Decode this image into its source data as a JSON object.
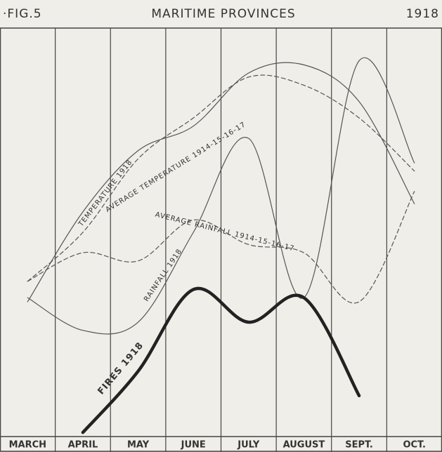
{
  "chart_data": {
    "type": "line",
    "figure": "·FIG.5",
    "title": "MARITIME PROVINCES",
    "year": "1918",
    "categories": [
      "MARCH",
      "APRIL",
      "MAY",
      "JUNE",
      "JULY",
      "AUGUST",
      "SEPT.",
      "OCT."
    ],
    "ylim": [
      0,
      100
    ],
    "series": [
      {
        "name": "TEMPERATURE 1918",
        "color": "#555",
        "style": "solid",
        "width": 1.2,
        "values": [
          33,
          55,
          70,
          76,
          89,
          91,
          82,
          57
        ]
      },
      {
        "name": "AVERAGE TEMPERATURE 1914-15-16-17",
        "color": "#555",
        "style": "dashed",
        "width": 1.2,
        "values": [
          38,
          50,
          68,
          78,
          88,
          86,
          78,
          65
        ]
      },
      {
        "name": "AVERAGE RAINFALL 1914-15-16-17",
        "color": "#555",
        "style": "dashed",
        "width": 1.2,
        "values": [
          38,
          45,
          43,
          53,
          47,
          45,
          33,
          60
        ]
      },
      {
        "name": "RAINFALL 1918",
        "color": "#555",
        "style": "solid",
        "width": 1.2,
        "values": [
          34,
          26,
          28,
          50,
          73,
          34,
          92,
          67
        ]
      },
      {
        "name": "FIRES 1918",
        "color": "#222",
        "style": "solid",
        "width": 4.5,
        "values": [
          null,
          1,
          16,
          36,
          28,
          34,
          10,
          null
        ]
      }
    ]
  }
}
